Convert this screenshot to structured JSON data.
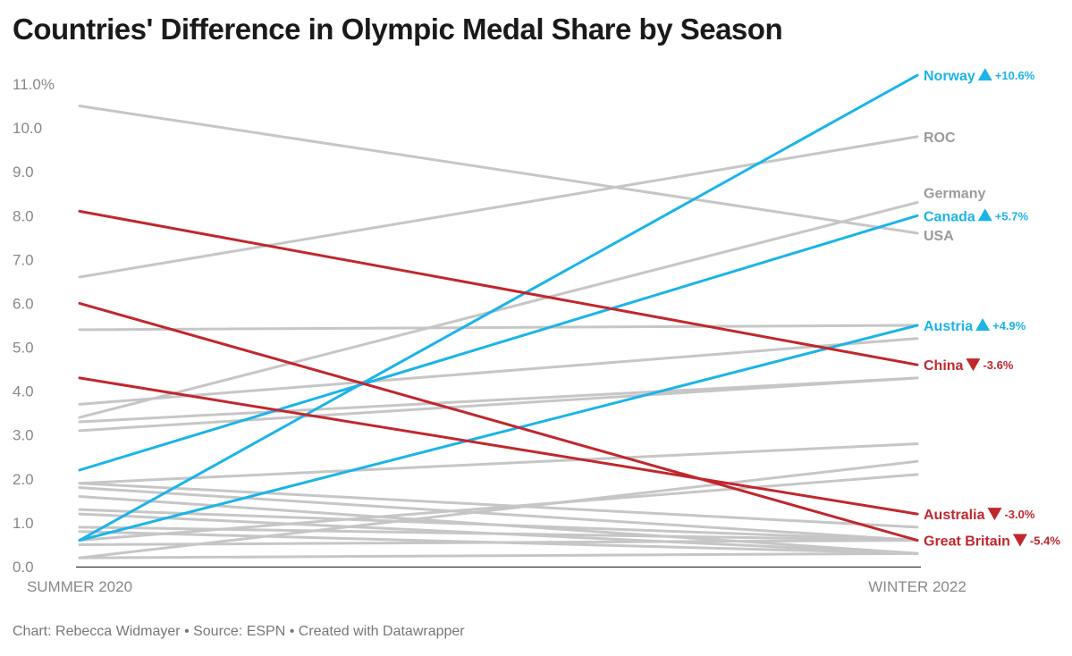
{
  "chart_data": {
    "type": "line",
    "title": "Countries' Difference in Olympic Medal Share by Season",
    "xlabel": "",
    "ylabel": "",
    "x": [
      "SUMMER 2020",
      "WINTER 2022"
    ],
    "ylim": [
      0,
      11
    ],
    "yticks": [
      "0.0",
      "1.0",
      "2.0",
      "3.0",
      "4.0",
      "5.0",
      "6.0",
      "7.0",
      "8.0",
      "9.0",
      "10.0",
      "11.0%"
    ],
    "grid": false,
    "colors": {
      "gain": "#1bb4e8",
      "loss": "#c0272d",
      "other": "#c6c6c6",
      "other_label": "#9a9a9a"
    },
    "series": [
      {
        "name": "USA",
        "values": [
          10.5,
          7.6
        ],
        "group": "other"
      },
      {
        "name": "ROC",
        "values": [
          6.6,
          9.8
        ],
        "group": "other"
      },
      {
        "name": "Germany",
        "values": [
          3.4,
          8.3
        ],
        "group": "other"
      },
      {
        "name": "",
        "values": [
          5.4,
          5.5
        ],
        "group": "other"
      },
      {
        "name": "",
        "values": [
          3.7,
          5.2
        ],
        "group": "other"
      },
      {
        "name": "",
        "values": [
          3.3,
          4.3
        ],
        "group": "other"
      },
      {
        "name": "",
        "values": [
          3.1,
          4.3
        ],
        "group": "other"
      },
      {
        "name": "",
        "values": [
          1.9,
          2.8
        ],
        "group": "other"
      },
      {
        "name": "",
        "values": [
          0.2,
          2.4
        ],
        "group": "other"
      },
      {
        "name": "",
        "values": [
          0.6,
          2.1
        ],
        "group": "other"
      },
      {
        "name": "",
        "values": [
          1.9,
          0.9
        ],
        "group": "other"
      },
      {
        "name": "",
        "values": [
          1.8,
          0.6
        ],
        "group": "other"
      },
      {
        "name": "",
        "values": [
          1.6,
          0.3
        ],
        "group": "other"
      },
      {
        "name": "",
        "values": [
          1.3,
          0.6
        ],
        "group": "other"
      },
      {
        "name": "",
        "values": [
          1.2,
          0.3
        ],
        "group": "other"
      },
      {
        "name": "",
        "values": [
          0.9,
          0.6
        ],
        "group": "other"
      },
      {
        "name": "",
        "values": [
          0.8,
          0.3
        ],
        "group": "other"
      },
      {
        "name": "",
        "values": [
          0.5,
          0.6
        ],
        "group": "other"
      },
      {
        "name": "",
        "values": [
          0.2,
          0.3
        ],
        "group": "other"
      },
      {
        "name": "Norway",
        "values": [
          0.6,
          11.2
        ],
        "group": "gain",
        "change": "+10.6%"
      },
      {
        "name": "Canada",
        "values": [
          2.2,
          8.0
        ],
        "group": "gain",
        "change": "+5.7%"
      },
      {
        "name": "Austria",
        "values": [
          0.6,
          5.5
        ],
        "group": "gain",
        "change": "+4.9%"
      },
      {
        "name": "China",
        "values": [
          8.1,
          4.6
        ],
        "group": "loss",
        "change": "-3.6%"
      },
      {
        "name": "Australia",
        "values": [
          4.3,
          1.2
        ],
        "group": "loss",
        "change": "-3.0%"
      },
      {
        "name": "Great Britain",
        "values": [
          6.0,
          0.6
        ],
        "group": "loss",
        "change": "-5.4%"
      }
    ]
  },
  "footer": {
    "text": "Chart: Rebecca Widmayer • Source: ESPN • Created with Datawrapper"
  }
}
